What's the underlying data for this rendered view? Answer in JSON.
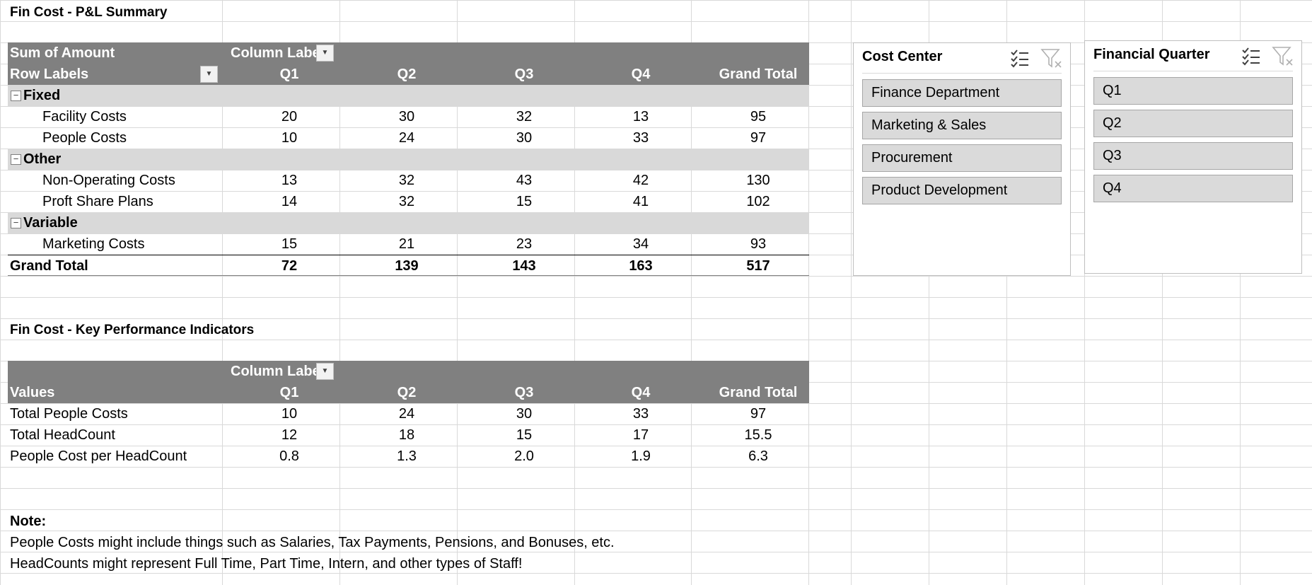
{
  "pl": {
    "title": "Fin Cost - P&L Summary",
    "sum_label": "Sum of Amount",
    "col_labels": "Column Labe",
    "row_labels": "Row Labels",
    "columns": [
      "Q1",
      "Q2",
      "Q3",
      "Q4",
      "Grand Total"
    ],
    "groups": [
      {
        "name": "Fixed",
        "items": [
          {
            "label": "Facility Costs",
            "values": [
              "20",
              "30",
              "32",
              "13",
              "95"
            ]
          },
          {
            "label": "People Costs",
            "values": [
              "10",
              "24",
              "30",
              "33",
              "97"
            ]
          }
        ]
      },
      {
        "name": "Other",
        "items": [
          {
            "label": "Non-Operating Costs",
            "values": [
              "13",
              "32",
              "43",
              "42",
              "130"
            ]
          },
          {
            "label": "Proft Share Plans",
            "values": [
              "14",
              "32",
              "15",
              "41",
              "102"
            ]
          }
        ]
      },
      {
        "name": "Variable",
        "items": [
          {
            "label": "Marketing Costs",
            "values": [
              "15",
              "21",
              "23",
              "34",
              "93"
            ]
          }
        ]
      }
    ],
    "grand_total": {
      "label": "Grand Total",
      "values": [
        "72",
        "139",
        "143",
        "163",
        "517"
      ]
    }
  },
  "kpi": {
    "title": "Fin Cost - Key Performance Indicators",
    "col_labels": "Column Labe",
    "values_label": "Values",
    "columns": [
      "Q1",
      "Q2",
      "Q3",
      "Q4",
      "Grand Total"
    ],
    "rows": [
      {
        "label": "Total People Costs",
        "values": [
          "10",
          "24",
          "30",
          "33",
          "97"
        ]
      },
      {
        "label": "Total HeadCount",
        "values": [
          "12",
          "18",
          "15",
          "17",
          "15.5"
        ]
      },
      {
        "label": "People Cost per HeadCount",
        "values": [
          "0.8",
          "1.3",
          "2.0",
          "1.9",
          "6.3"
        ]
      }
    ]
  },
  "note": {
    "heading": "Note:",
    "line1": "People Costs might include things such as Salaries, Tax Payments, Pensions, and Bonuses, etc.",
    "line2": "HeadCounts might represent Full Time, Part Time, Intern, and other types of Staff!"
  },
  "slicer_cost_center": {
    "title": "Cost Center",
    "items": [
      "Finance Department",
      "Marketing & Sales",
      "Procurement",
      "Product Development"
    ]
  },
  "slicer_quarter": {
    "title": "Financial Quarter",
    "items": [
      "Q1",
      "Q2",
      "Q3",
      "Q4"
    ]
  },
  "icons": {
    "multi_select": "multi-select-icon",
    "clear_filter": "clear-filter-icon",
    "dropdown": "dropdown-arrow-icon",
    "collapse": "collapse-icon"
  },
  "colors": {
    "header_bg": "#808080",
    "group_bg": "#d9d9d9",
    "slicer_button_bg": "#dadada",
    "gridline": "#d9d9d9"
  }
}
